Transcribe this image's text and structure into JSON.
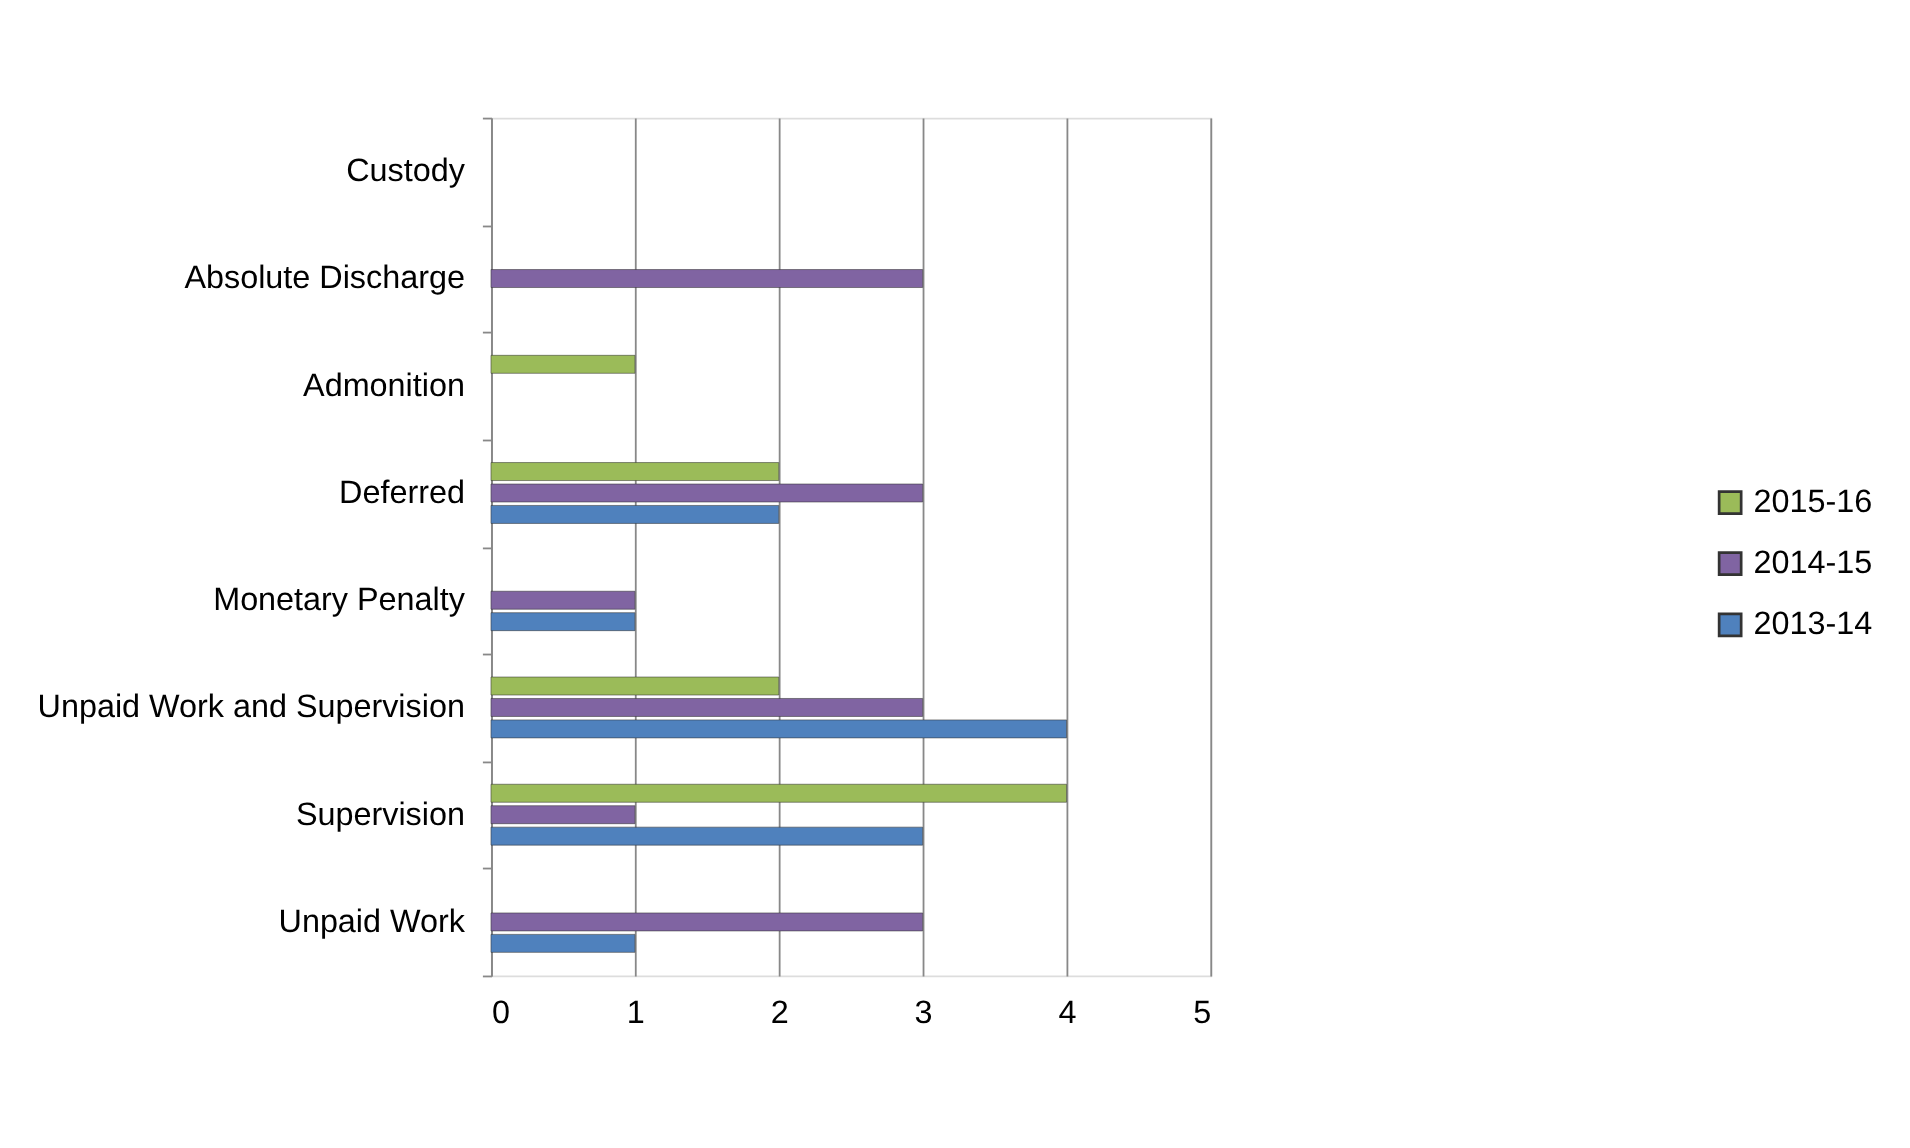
{
  "chart_data": {
    "type": "bar",
    "orientation": "horizontal",
    "categories": [
      "Custody",
      "Absolute Discharge",
      "Admonition",
      "Deferred",
      "Monetary Penalty",
      "Unpaid Work and Supervision",
      "Supervision",
      "Unpaid Work"
    ],
    "series": [
      {
        "name": "2015-16",
        "color": "#9bbb59",
        "values": [
          null,
          null,
          1,
          2,
          null,
          2,
          4,
          null
        ]
      },
      {
        "name": "2014-15",
        "color": "#8064a2",
        "values": [
          null,
          3,
          null,
          3,
          1,
          3,
          1,
          3
        ]
      },
      {
        "name": "2013-14",
        "color": "#4f81bd",
        "values": [
          null,
          null,
          null,
          2,
          1,
          4,
          3,
          1
        ]
      }
    ],
    "xlim": [
      0,
      5
    ],
    "xticks": [
      0,
      1,
      2,
      3,
      4,
      5
    ],
    "grid": "x",
    "legend": "right"
  }
}
